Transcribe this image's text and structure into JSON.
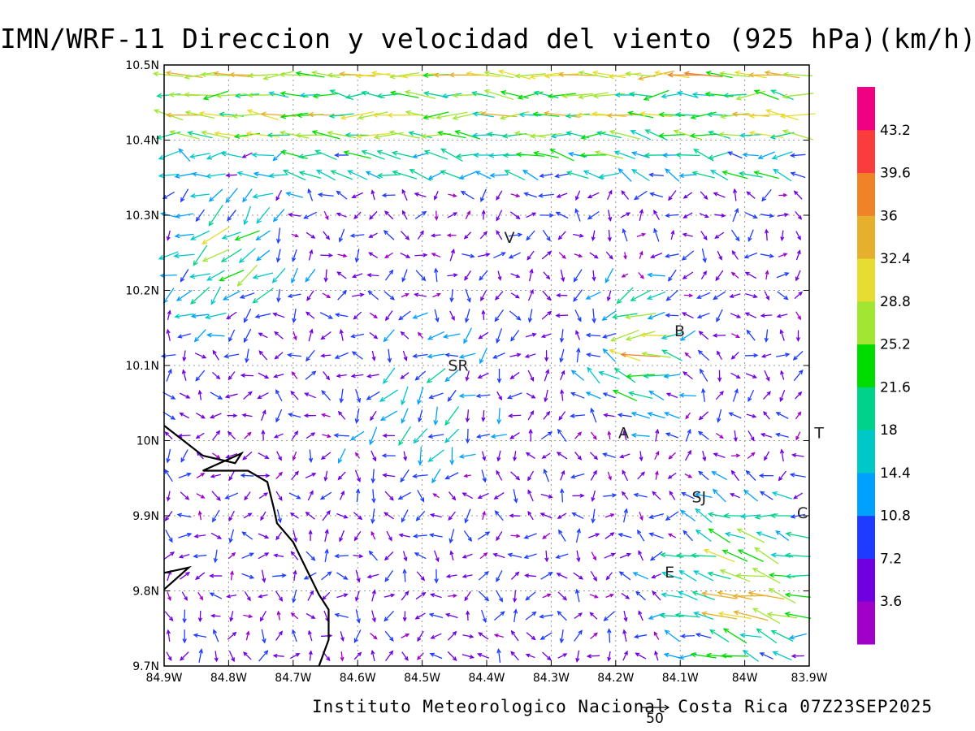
{
  "chart_data": {
    "type": "vector-field",
    "title": "IMN/WRF-11 Direccion y velocidad del viento (925 hPa)(km/h)",
    "footer": "Instituto Meteorologico Nacional Costa Rica 07Z23SEP2025",
    "reference_vector": {
      "label": "50",
      "value": 50
    },
    "xlim": [
      -84.9,
      -83.9
    ],
    "ylim": [
      9.7,
      10.5
    ],
    "x_ticks": [
      {
        "v": -84.9,
        "label": "84.9W"
      },
      {
        "v": -84.8,
        "label": "84.8W"
      },
      {
        "v": -84.7,
        "label": "84.7W"
      },
      {
        "v": -84.6,
        "label": "84.6W"
      },
      {
        "v": -84.5,
        "label": "84.5W"
      },
      {
        "v": -84.4,
        "label": "84.4W"
      },
      {
        "v": -84.3,
        "label": "84.3W"
      },
      {
        "v": -84.2,
        "label": "84.2W"
      },
      {
        "v": -84.1,
        "label": "84.1W"
      },
      {
        "v": -84.0,
        "label": "84W"
      },
      {
        "v": -83.9,
        "label": "83.9W"
      }
    ],
    "y_ticks": [
      {
        "v": 9.7,
        "label": "9.7N"
      },
      {
        "v": 9.8,
        "label": "9.8N"
      },
      {
        "v": 9.9,
        "label": "9.9N"
      },
      {
        "v": 10.0,
        "label": "10N"
      },
      {
        "v": 10.1,
        "label": "10.1N"
      },
      {
        "v": 10.2,
        "label": "10.2N"
      },
      {
        "v": 10.3,
        "label": "10.3N"
      },
      {
        "v": 10.4,
        "label": "10.4N"
      },
      {
        "v": 10.5,
        "label": "10.5N"
      }
    ],
    "grid": true,
    "colorbar": {
      "colors": [
        "#a000c8",
        "#7000e0",
        "#1e3cff",
        "#00a0ff",
        "#00c8c8",
        "#00d28c",
        "#00dc00",
        "#a0e632",
        "#e6dc32",
        "#e6af2d",
        "#f08228",
        "#fa3c3c",
        "#f00082"
      ],
      "labels": [
        "3.6",
        "7.2",
        "10.8",
        "14.4",
        "18",
        "21.6",
        "25.2",
        "28.8",
        "32.4",
        "36",
        "39.6",
        "43.2"
      ]
    },
    "cities": [
      {
        "label": "V",
        "x": -84.373,
        "y": 10.263
      },
      {
        "label": "B",
        "x": -84.109,
        "y": 10.139
      },
      {
        "label": "SR",
        "x": -84.46,
        "y": 10.093
      },
      {
        "label": "A",
        "x": -84.196,
        "y": 10.003
      },
      {
        "label": "SJ",
        "x": -84.082,
        "y": 9.918
      },
      {
        "label": "C",
        "x": -83.919,
        "y": 9.897
      },
      {
        "label": "E",
        "x": -84.124,
        "y": 9.818
      },
      {
        "label": "T",
        "x": -83.892,
        "y": 10.003
      }
    ],
    "coastline": [
      {
        "x": -84.9,
        "y": 10.02
      },
      {
        "x": -84.87,
        "y": 10.0
      },
      {
        "x": -84.84,
        "y": 9.98
      },
      {
        "x": -84.79,
        "y": 9.97
      },
      {
        "x": -84.78,
        "y": 9.983
      },
      {
        "x": -84.84,
        "y": 9.96
      },
      {
        "x": -84.77,
        "y": 9.96
      },
      {
        "x": -84.74,
        "y": 9.945
      },
      {
        "x": -84.73,
        "y": 9.91
      },
      {
        "x": -84.725,
        "y": 9.89
      },
      {
        "x": -84.7,
        "y": 9.865
      },
      {
        "x": -84.68,
        "y": 9.83
      },
      {
        "x": -84.66,
        "y": 9.795
      },
      {
        "x": -84.645,
        "y": 9.775
      },
      {
        "x": -84.645,
        "y": 9.735
      },
      {
        "x": -84.66,
        "y": 9.7
      }
    ],
    "coastline2": [
      {
        "x": -84.9,
        "y": 9.824
      },
      {
        "x": -84.862,
        "y": 9.831
      },
      {
        "x": -84.9,
        "y": 9.802
      }
    ],
    "wind_bands": [
      {
        "y": 10.49,
        "u": -30,
        "v": 0
      },
      {
        "y": 10.45,
        "u": -27,
        "v": 1
      },
      {
        "y": 10.42,
        "u": -24,
        "v": 1
      },
      {
        "y": 10.39,
        "u": -22,
        "v": 3
      },
      {
        "y": 10.35,
        "u": -14,
        "v": 3
      }
    ],
    "wind_notes": "Vectors point toward flow direction; lengths scaled to the 50 km/h reference vector."
  }
}
